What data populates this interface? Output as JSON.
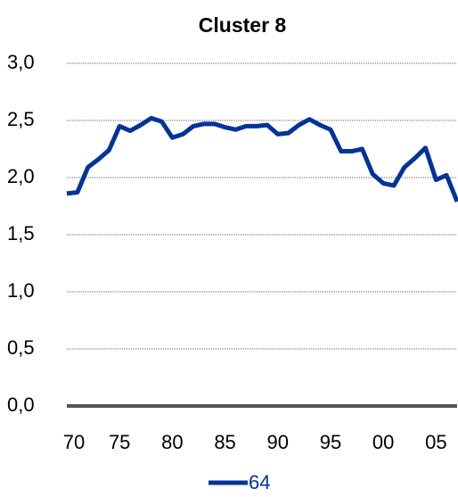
{
  "chart_data": {
    "type": "line",
    "title": "Cluster 8",
    "x": [
      1970,
      1971,
      1972,
      1973,
      1974,
      1975,
      1976,
      1977,
      1978,
      1979,
      1980,
      1981,
      1982,
      1983,
      1984,
      1985,
      1986,
      1987,
      1988,
      1989,
      1990,
      1991,
      1992,
      1993,
      1994,
      1995,
      1996,
      1997,
      1998,
      1999,
      2000,
      2001,
      2002,
      2003,
      2004,
      2005,
      2006,
      2007
    ],
    "series": [
      {
        "name": "64",
        "color": "#003399",
        "values": [
          1.86,
          1.87,
          2.09,
          2.16,
          2.24,
          2.45,
          2.41,
          2.46,
          2.52,
          2.49,
          2.35,
          2.38,
          2.45,
          2.47,
          2.47,
          2.44,
          2.42,
          2.45,
          2.45,
          2.46,
          2.38,
          2.39,
          2.46,
          2.51,
          2.46,
          2.42,
          2.23,
          2.23,
          2.25,
          2.03,
          1.95,
          1.93,
          2.09,
          2.17,
          2.26,
          1.98,
          2.02,
          1.79
        ]
      }
    ],
    "xlim": [
      1970,
      2007
    ],
    "xticks": [
      {
        "value": 1970,
        "label": "70"
      },
      {
        "value": 1975,
        "label": "75"
      },
      {
        "value": 1980,
        "label": "80"
      },
      {
        "value": 1985,
        "label": "85"
      },
      {
        "value": 1990,
        "label": "90"
      },
      {
        "value": 1995,
        "label": "95"
      },
      {
        "value": 2000,
        "label": "00"
      },
      {
        "value": 2005,
        "label": "05"
      }
    ],
    "ylim": [
      0,
      3
    ],
    "yticks": [
      {
        "value": 0,
        "label": "0,0"
      },
      {
        "value": 0.5,
        "label": "0,5"
      },
      {
        "value": 1,
        "label": "1,0"
      },
      {
        "value": 1.5,
        "label": "1,5"
      },
      {
        "value": 2,
        "label": "2,0"
      },
      {
        "value": 2.5,
        "label": "2,5"
      },
      {
        "value": 3,
        "label": "3,0"
      }
    ],
    "grid": true
  }
}
